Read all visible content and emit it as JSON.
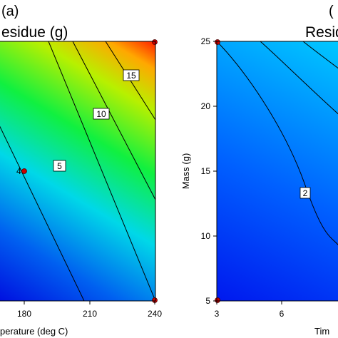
{
  "chart_data": [
    {
      "type": "heatmap",
      "panel_label": "(a)",
      "title": "Residue (g)",
      "title_visible": "esidue (g)",
      "xlabel": "perature (deg C)",
      "ylabel": "",
      "x_ticks": [
        "180",
        "210",
        "240"
      ],
      "y_ticks": [],
      "xlim": [
        150,
        240
      ],
      "ylim": [
        0,
        1
      ],
      "contour_levels": [
        "5",
        "10",
        "15"
      ],
      "colormap": [
        "#0000ff",
        "#00a0ff",
        "#00ffff",
        "#00ff00",
        "#ffff00",
        "#ff8000",
        "#ff0000"
      ],
      "design_points": [
        {
          "label": "4",
          "x": 180,
          "y": 0.5
        }
      ],
      "corner_points": [
        {
          "x": 240,
          "y": 1
        },
        {
          "x": 240,
          "y": 0
        }
      ]
    },
    {
      "type": "heatmap",
      "panel_label": "(b)",
      "title": "Residue",
      "title_visible": "Resid",
      "xlabel": "Tim",
      "ylabel": "Mass (g)",
      "x_ticks": [
        "3",
        "6"
      ],
      "y_ticks": [
        "5",
        "10",
        "15",
        "20",
        "25"
      ],
      "xlim": [
        3,
        10.5
      ],
      "ylim": [
        5,
        25
      ],
      "contour_levels": [
        "2"
      ],
      "colormap": [
        "#0010ff",
        "#0050ff",
        "#0090ff",
        "#00b8ff"
      ],
      "corner_points": [
        {
          "x": 3,
          "y": 25
        },
        {
          "x": 3,
          "y": 5
        }
      ]
    }
  ]
}
